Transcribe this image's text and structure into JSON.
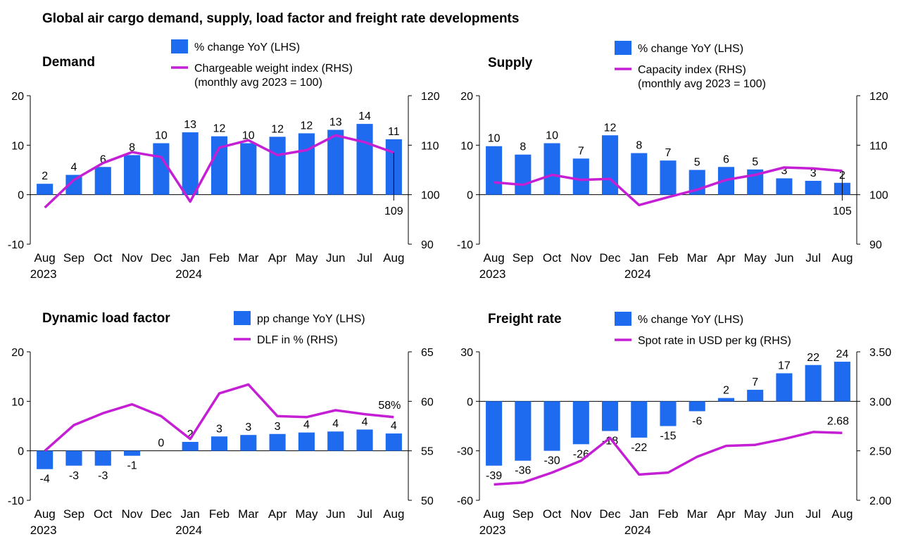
{
  "title": "Global air cargo demand, supply, load factor and freight rate developments",
  "colors": {
    "bar": "#1f6bf0",
    "line": "#c41fd4",
    "axis": "#000000"
  },
  "chart_data": [
    {
      "title": "Demand",
      "type": "bar+line",
      "categories": [
        "Aug",
        "Sep",
        "Oct",
        "Nov",
        "Dec",
        "Jan",
        "Feb",
        "Mar",
        "Apr",
        "May",
        "Jun",
        "Jul",
        "Aug"
      ],
      "year_labels": [
        "2023",
        "",
        "",
        "",
        "",
        "2024",
        "",
        "",
        "",
        "",
        "",
        "",
        ""
      ],
      "bar_series": {
        "name": "% change YoY (LHS)",
        "values": [
          2.2,
          4.0,
          5.6,
          8.0,
          10.4,
          12.6,
          11.8,
          10.4,
          11.7,
          12.4,
          13.1,
          14.3,
          11.2
        ],
        "labels": [
          "2",
          "4",
          "6",
          "8",
          "10",
          "13",
          "12",
          "10",
          "12",
          "12",
          "13",
          "14",
          "11"
        ]
      },
      "line_series": {
        "name": "Chargeable weight index (RHS)",
        "name_line2": "(monthly avg 2023 = 100)",
        "values": [
          97.4,
          103.0,
          106.4,
          108.6,
          107.6,
          98.6,
          109.5,
          111.0,
          108.0,
          109.0,
          112.0,
          110.6,
          108.5
        ]
      },
      "end_label": "109",
      "y_left": {
        "min": -10,
        "max": 20,
        "ticks": [
          "-10",
          "0",
          "10",
          "20"
        ]
      },
      "y_right": {
        "min": 90,
        "max": 120,
        "ticks": [
          "90",
          "100",
          "110",
          "120"
        ]
      }
    },
    {
      "title": "Supply",
      "type": "bar+line",
      "categories": [
        "Aug",
        "Sep",
        "Oct",
        "Nov",
        "Dec",
        "Jan",
        "Feb",
        "Mar",
        "Apr",
        "May",
        "Jun",
        "Jul",
        "Aug"
      ],
      "year_labels": [
        "2023",
        "",
        "",
        "",
        "",
        "2024",
        "",
        "",
        "",
        "",
        "",
        "",
        ""
      ],
      "bar_series": {
        "name": "% change YoY (LHS)",
        "values": [
          9.8,
          8.1,
          10.4,
          7.3,
          12.0,
          8.4,
          6.9,
          5.0,
          5.6,
          5.1,
          3.3,
          2.8,
          2.4
        ],
        "labels": [
          "10",
          "8",
          "10",
          "7",
          "12",
          "8",
          "7",
          "5",
          "6",
          "5",
          "3",
          "3",
          "2"
        ]
      },
      "line_series": {
        "name": "Capacity index (RHS)",
        "name_line2": "(monthly avg 2023 = 100)",
        "values": [
          102.5,
          102.0,
          104.0,
          103.0,
          103.2,
          97.9,
          99.5,
          101.0,
          103.0,
          104.0,
          105.5,
          105.3,
          104.8
        ]
      },
      "end_label": "105",
      "y_left": {
        "min": -10,
        "max": 20,
        "ticks": [
          "-10",
          "0",
          "10",
          "20"
        ]
      },
      "y_right": {
        "min": 90,
        "max": 120,
        "ticks": [
          "90",
          "100",
          "110",
          "120"
        ]
      }
    },
    {
      "title": "Dynamic load factor",
      "type": "bar+line",
      "categories": [
        "Aug",
        "Sep",
        "Oct",
        "Nov",
        "Dec",
        "Jan",
        "Feb",
        "Mar",
        "Apr",
        "May",
        "Jun",
        "Jul",
        "Aug"
      ],
      "year_labels": [
        "2023",
        "",
        "",
        "",
        "",
        "2024",
        "",
        "",
        "",
        "",
        "",
        "",
        ""
      ],
      "bar_series": {
        "name": "pp change YoY (LHS)",
        "values": [
          -3.7,
          -3.0,
          -3.0,
          -1.0,
          0,
          1.8,
          2.9,
          3.2,
          3.4,
          3.7,
          3.9,
          4.3,
          3.5
        ],
        "labels": [
          "-4",
          "-3",
          "-3",
          "-1",
          "0",
          "2",
          "3",
          "3",
          "3",
          "4",
          "4",
          "4",
          "4"
        ]
      },
      "line_series": {
        "name": "DLF in % (RHS)",
        "values": [
          55.0,
          57.6,
          58.8,
          59.7,
          58.5,
          56.2,
          60.8,
          61.7,
          58.5,
          58.4,
          59.1,
          58.7,
          58.4
        ]
      },
      "end_label": "58%",
      "y_left": {
        "min": -10,
        "max": 20,
        "ticks": [
          "-10",
          "0",
          "10",
          "20"
        ]
      },
      "y_right": {
        "min": 50,
        "max": 65,
        "ticks": [
          "50",
          "55",
          "60",
          "65"
        ]
      }
    },
    {
      "title": "Freight rate",
      "type": "bar+line",
      "categories": [
        "Aug",
        "Sep",
        "Oct",
        "Nov",
        "Dec",
        "Jan",
        "Feb",
        "Mar",
        "Apr",
        "May",
        "Jun",
        "Jul",
        "Aug"
      ],
      "year_labels": [
        "2023",
        "",
        "",
        "",
        "",
        "2024",
        "",
        "",
        "",
        "",
        "",
        "",
        ""
      ],
      "bar_series": {
        "name": "% change YoY (LHS)",
        "values": [
          -39,
          -36,
          -30,
          -26,
          -18,
          -22,
          -15,
          -6,
          2,
          7,
          17,
          22,
          24
        ],
        "labels": [
          "-39",
          "-36",
          "-30",
          "-26",
          "-18",
          "-22",
          "-15",
          "-6",
          "2",
          "7",
          "17",
          "22",
          "24"
        ]
      },
      "line_series": {
        "name": "Spot rate in USD per kg (RHS)",
        "values": [
          2.16,
          2.18,
          2.28,
          2.4,
          2.63,
          2.26,
          2.28,
          2.44,
          2.55,
          2.56,
          2.62,
          2.69,
          2.68
        ]
      },
      "end_label": "2.68",
      "y_left": {
        "min": -60,
        "max": 30,
        "ticks": [
          "-60",
          "-30",
          "0",
          "30"
        ]
      },
      "y_right": {
        "min": 2.0,
        "max": 3.5,
        "ticks": [
          "2.00",
          "2.50",
          "3.00",
          "3.50"
        ]
      }
    }
  ]
}
